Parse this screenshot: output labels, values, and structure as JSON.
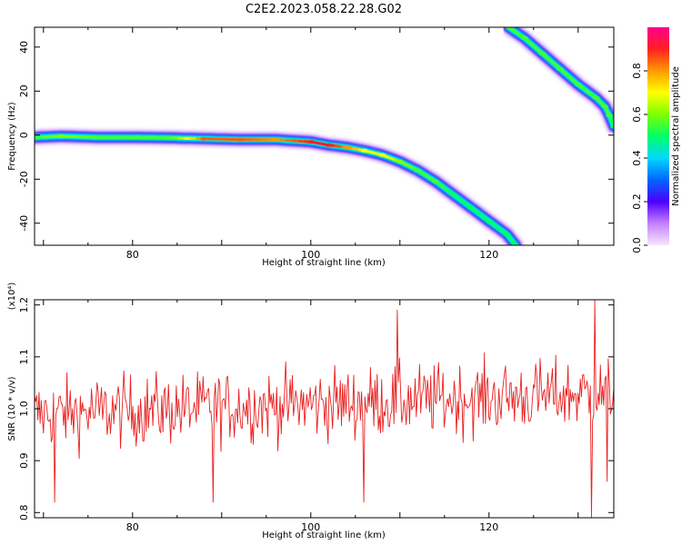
{
  "title": "C2E2.2023.058.22.28.G02",
  "chart_data": [
    {
      "type": "heatmap",
      "xlabel": "Height of straight line (km)",
      "ylabel": "Frequency (Hz)",
      "xlim": [
        69,
        134
      ],
      "ylim": [
        -50,
        49
      ],
      "xticks": [
        80,
        100,
        120
      ],
      "yticks": [
        40,
        20,
        0,
        -20,
        -40
      ],
      "ytick_labels": [
        "40",
        "20",
        "0",
        "-20",
        "-40"
      ],
      "colorbar": {
        "label": "Normalized spectral amplitude",
        "ticks": [
          0.0,
          0.2,
          0.4,
          0.6,
          0.8
        ],
        "tick_labels": [
          "0.0",
          "0.2",
          "0.4",
          "0.6",
          "0.8"
        ],
        "colormap": [
          "#f4e6ff",
          "#c680ff",
          "#4b00ff",
          "#0066ff",
          "#00d8ff",
          "#00ff66",
          "#7fff00",
          "#ffff00",
          "#ff9900",
          "#ff2020",
          "#ff0090"
        ]
      },
      "ridges": [
        {
          "name": "main",
          "x": [
            69,
            72,
            76,
            80,
            84,
            88,
            92,
            96,
            100,
            102,
            104,
            106,
            108,
            110,
            112,
            114,
            116,
            118,
            120,
            122,
            123
          ],
          "y": [
            -1,
            -0.5,
            -1,
            -1,
            -1.2,
            -1.6,
            -2,
            -2,
            -3,
            -4.5,
            -5.5,
            -7,
            -9,
            -12,
            -16,
            -21,
            -27,
            -33,
            -39,
            -45,
            -50
          ],
          "amplitude": [
            0.55,
            0.6,
            0.55,
            0.55,
            0.55,
            0.85,
            0.85,
            0.8,
            0.9,
            0.9,
            0.8,
            0.7,
            0.7,
            0.6,
            0.55,
            0.55,
            0.5,
            0.5,
            0.5,
            0.5,
            0.5
          ]
        },
        {
          "name": "upper",
          "x": [
            122.2,
            124,
            126,
            128,
            130,
            132,
            133,
            133.5,
            134
          ],
          "y": [
            49,
            44,
            37,
            30,
            23,
            17,
            13,
            9,
            4
          ],
          "amplitude": [
            0.55,
            0.55,
            0.55,
            0.55,
            0.55,
            0.55,
            0.55,
            0.55,
            0.5
          ]
        }
      ]
    },
    {
      "type": "line",
      "xlabel": "Height of straight line (km)",
      "ylabel": "SNR (10 * v/v)",
      "y_multiplier": "(x10⁴)",
      "xlim": [
        69,
        134
      ],
      "ylim": [
        0.79,
        1.21
      ],
      "xticks": [
        80,
        100,
        120
      ],
      "yticks": [
        0.8,
        0.9,
        1.0,
        1.1,
        1.2
      ],
      "ytick_labels": [
        "0.8",
        "0.9",
        "1.0",
        "1.1",
        "1.2"
      ],
      "color": "#e82020",
      "x_start": 69,
      "x_end": 134,
      "n_samples": 520,
      "mean_start": 0.99,
      "mean_end": 1.03,
      "noise_amplitude": 0.045,
      "extreme_points": [
        {
          "x": 71.2,
          "y": 0.82
        },
        {
          "x": 89.1,
          "y": 0.82
        },
        {
          "x": 106.0,
          "y": 0.82
        },
        {
          "x": 109.7,
          "y": 1.19
        },
        {
          "x": 131.5,
          "y": 0.79
        },
        {
          "x": 131.9,
          "y": 1.21
        },
        {
          "x": 133.3,
          "y": 0.86
        }
      ]
    }
  ]
}
